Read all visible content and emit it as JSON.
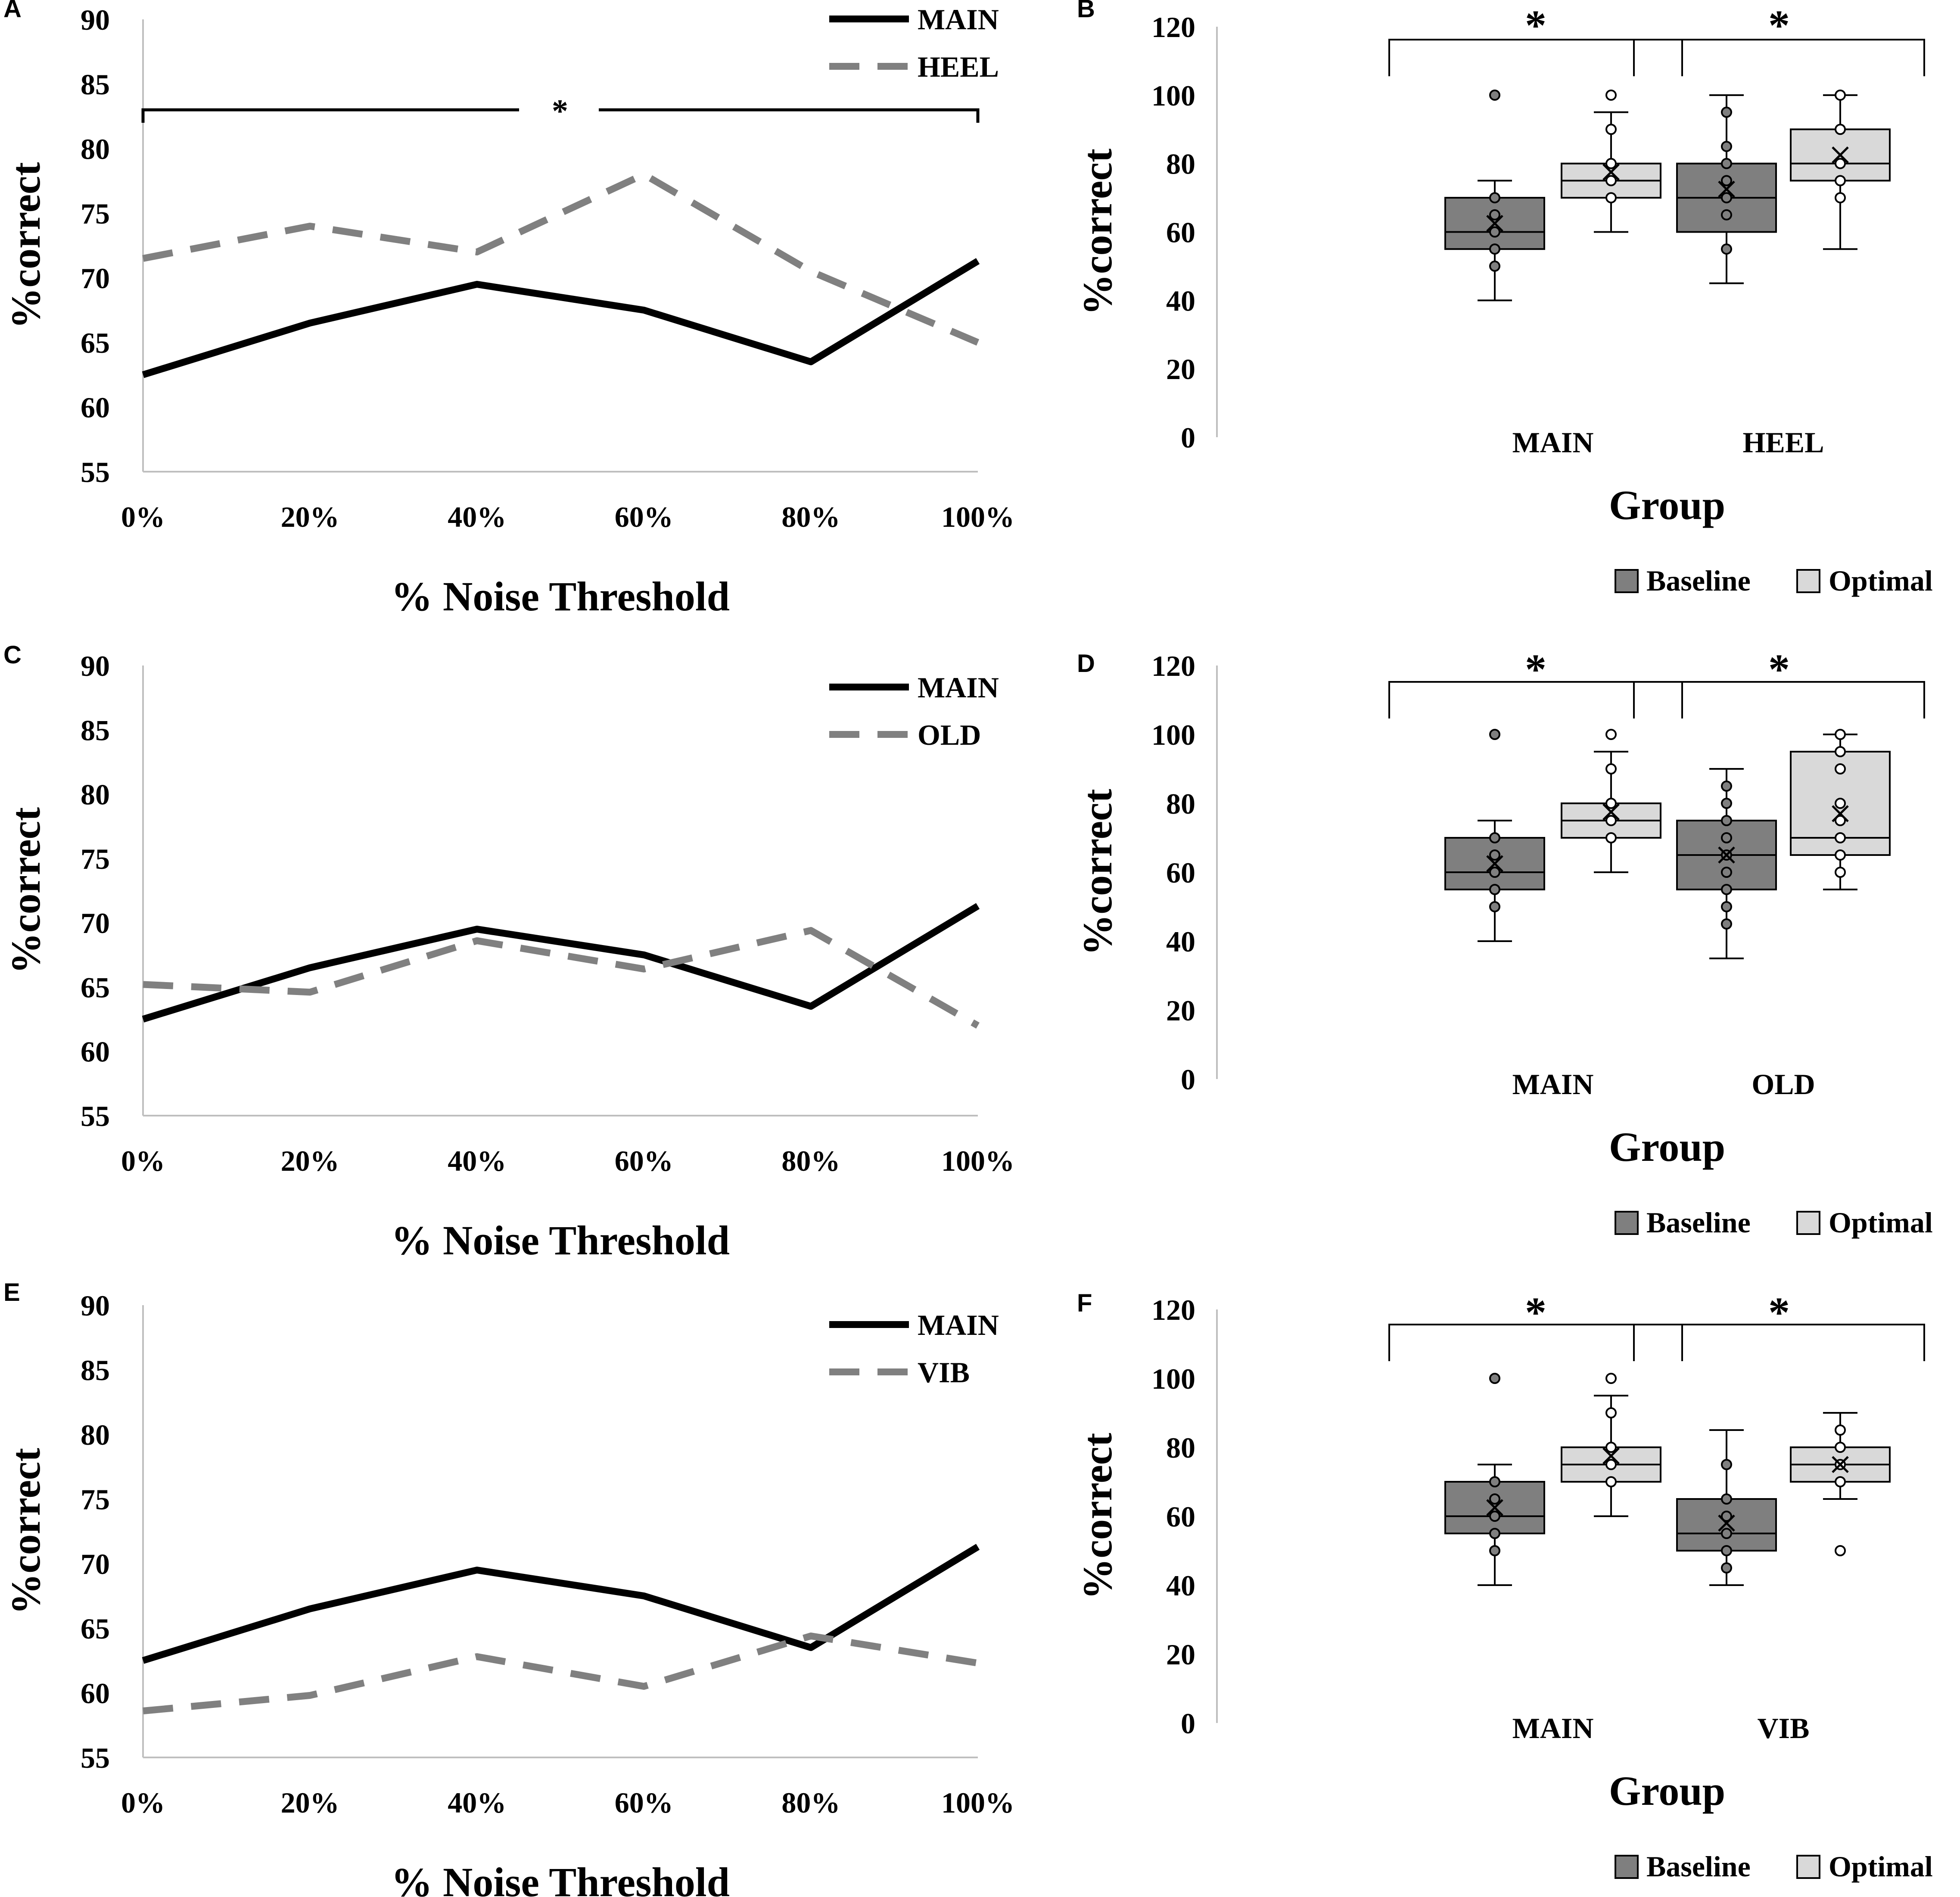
{
  "colors": {
    "main_line": "#000000",
    "compare_line": "#808080",
    "baseline_fill": "#7f7f7f",
    "optimal_fill": "#d9d9d9",
    "axis": "#bfbfbf"
  },
  "chart_data": [
    {
      "panel": "A",
      "type": "line",
      "x": [
        "0%",
        "20%",
        "40%",
        "60%",
        "80%",
        "100%"
      ],
      "series": [
        {
          "name": "MAIN",
          "style": "solid",
          "values": [
            62.5,
            66.5,
            69.5,
            67.5,
            63.5,
            71.3
          ]
        },
        {
          "name": "HEEL",
          "style": "dashed",
          "values": [
            71.5,
            74.0,
            72.0,
            78.0,
            70.5,
            65.0
          ]
        }
      ],
      "yticks": [
        55,
        60,
        65,
        70,
        75,
        80,
        85,
        90
      ],
      "ylim": [
        55,
        90
      ],
      "ylabel": "%correct",
      "xlabel": "% Noise Threshold",
      "significance": {
        "y": 83,
        "label": "*"
      }
    },
    {
      "panel": "B",
      "type": "box",
      "groups": [
        "MAIN",
        "HEEL"
      ],
      "conditions": [
        "Baseline",
        "Optimal"
      ],
      "boxes": [
        {
          "group": "MAIN",
          "condition": "Baseline",
          "min": 40,
          "q1": 55,
          "median": 60,
          "q3": 70,
          "max": 75,
          "mean": 62.5,
          "points": [
            50,
            55,
            60,
            65,
            70
          ],
          "outliers": [
            100
          ]
        },
        {
          "group": "MAIN",
          "condition": "Optimal",
          "min": 60,
          "q1": 70,
          "median": 75,
          "q3": 80,
          "max": 95,
          "mean": 77.5,
          "points": [
            70,
            75,
            80,
            90
          ],
          "outliers": [
            100
          ]
        },
        {
          "group": "HEEL",
          "condition": "Baseline",
          "min": 45,
          "q1": 60,
          "median": 70,
          "q3": 80,
          "max": 100,
          "mean": 72.5,
          "points": [
            55,
            65,
            70,
            75,
            80,
            85,
            95
          ],
          "outliers": []
        },
        {
          "group": "HEEL",
          "condition": "Optimal",
          "min": 55,
          "q1": 75,
          "median": 80,
          "q3": 90,
          "max": 100,
          "mean": 82.5,
          "points": [
            70,
            75,
            80,
            90,
            100
          ],
          "outliers": []
        }
      ],
      "yticks": [
        0,
        20,
        40,
        60,
        80,
        100,
        120
      ],
      "ylim": [
        0,
        120
      ],
      "ylabel": "%correct",
      "xlabel": "Group",
      "legend": [
        "Baseline",
        "Optimal"
      ],
      "significance": [
        "*",
        "*"
      ]
    },
    {
      "panel": "C",
      "type": "line",
      "x": [
        "0%",
        "20%",
        "40%",
        "60%",
        "80%",
        "100%"
      ],
      "series": [
        {
          "name": "MAIN",
          "style": "solid",
          "values": [
            62.5,
            66.5,
            69.5,
            67.5,
            63.5,
            71.3
          ]
        },
        {
          "name": "OLD",
          "style": "dashed",
          "values": [
            65.2,
            64.6,
            68.6,
            66.4,
            69.4,
            62.0
          ]
        }
      ],
      "yticks": [
        55,
        60,
        65,
        70,
        75,
        80,
        85,
        90
      ],
      "ylim": [
        55,
        90
      ],
      "ylabel": "%correct",
      "xlabel": "% Noise Threshold"
    },
    {
      "panel": "D",
      "type": "box",
      "groups": [
        "MAIN",
        "OLD"
      ],
      "conditions": [
        "Baseline",
        "Optimal"
      ],
      "boxes": [
        {
          "group": "MAIN",
          "condition": "Baseline",
          "min": 40,
          "q1": 55,
          "median": 60,
          "q3": 70,
          "max": 75,
          "mean": 62.5,
          "points": [
            50,
            55,
            60,
            65,
            70
          ],
          "outliers": [
            100
          ]
        },
        {
          "group": "MAIN",
          "condition": "Optimal",
          "min": 60,
          "q1": 70,
          "median": 75,
          "q3": 80,
          "max": 95,
          "mean": 77.5,
          "points": [
            70,
            75,
            80,
            90
          ],
          "outliers": [
            100
          ]
        },
        {
          "group": "OLD",
          "condition": "Baseline",
          "min": 35,
          "q1": 55,
          "median": 65,
          "q3": 75,
          "max": 90,
          "mean": 65,
          "points": [
            45,
            50,
            55,
            60,
            65,
            70,
            75,
            80,
            85
          ],
          "outliers": []
        },
        {
          "group": "OLD",
          "condition": "Optimal",
          "min": 55,
          "q1": 65,
          "median": 70,
          "q3": 95,
          "max": 100,
          "mean": 77,
          "points": [
            60,
            65,
            70,
            75,
            80,
            90,
            95,
            100
          ],
          "outliers": []
        }
      ],
      "yticks": [
        0,
        20,
        40,
        60,
        80,
        100,
        120
      ],
      "ylim": [
        0,
        120
      ],
      "ylabel": "%correct",
      "xlabel": "Group",
      "legend": [
        "Baseline",
        "Optimal"
      ],
      "significance": [
        "*",
        "*"
      ]
    },
    {
      "panel": "E",
      "type": "line",
      "x": [
        "0%",
        "20%",
        "40%",
        "60%",
        "80%",
        "100%"
      ],
      "series": [
        {
          "name": "MAIN",
          "style": "solid",
          "values": [
            62.5,
            66.5,
            69.5,
            67.5,
            63.5,
            71.3
          ]
        },
        {
          "name": "VIB",
          "style": "dashed",
          "values": [
            58.6,
            59.8,
            62.8,
            60.5,
            64.4,
            62.3
          ]
        }
      ],
      "yticks": [
        55,
        60,
        65,
        70,
        75,
        80,
        85,
        90
      ],
      "ylim": [
        55,
        90
      ],
      "ylabel": "%correct",
      "xlabel": "% Noise Threshold"
    },
    {
      "panel": "F",
      "type": "box",
      "groups": [
        "MAIN",
        "VIB"
      ],
      "conditions": [
        "Baseline",
        "Optimal"
      ],
      "boxes": [
        {
          "group": "MAIN",
          "condition": "Baseline",
          "min": 40,
          "q1": 55,
          "median": 60,
          "q3": 70,
          "max": 75,
          "mean": 62.5,
          "points": [
            50,
            55,
            60,
            65,
            70
          ],
          "outliers": [
            100
          ]
        },
        {
          "group": "MAIN",
          "condition": "Optimal",
          "min": 60,
          "q1": 70,
          "median": 75,
          "q3": 80,
          "max": 95,
          "mean": 77.5,
          "points": [
            70,
            75,
            80,
            90
          ],
          "outliers": [
            100
          ]
        },
        {
          "group": "VIB",
          "condition": "Baseline",
          "min": 40,
          "q1": 50,
          "median": 55,
          "q3": 65,
          "max": 85,
          "mean": 58,
          "points": [
            45,
            50,
            55,
            60,
            65,
            75
          ],
          "outliers": []
        },
        {
          "group": "VIB",
          "condition": "Optimal",
          "min": 65,
          "q1": 70,
          "median": 75,
          "q3": 80,
          "max": 90,
          "mean": 75,
          "points": [
            70,
            75,
            80,
            85
          ],
          "outliers": [
            50
          ]
        }
      ],
      "yticks": [
        0,
        20,
        40,
        60,
        80,
        100,
        120
      ],
      "ylim": [
        0,
        120
      ],
      "ylabel": "%correct",
      "xlabel": "Group",
      "legend": [
        "Baseline",
        "Optimal"
      ],
      "significance": [
        "*",
        "*"
      ]
    }
  ]
}
